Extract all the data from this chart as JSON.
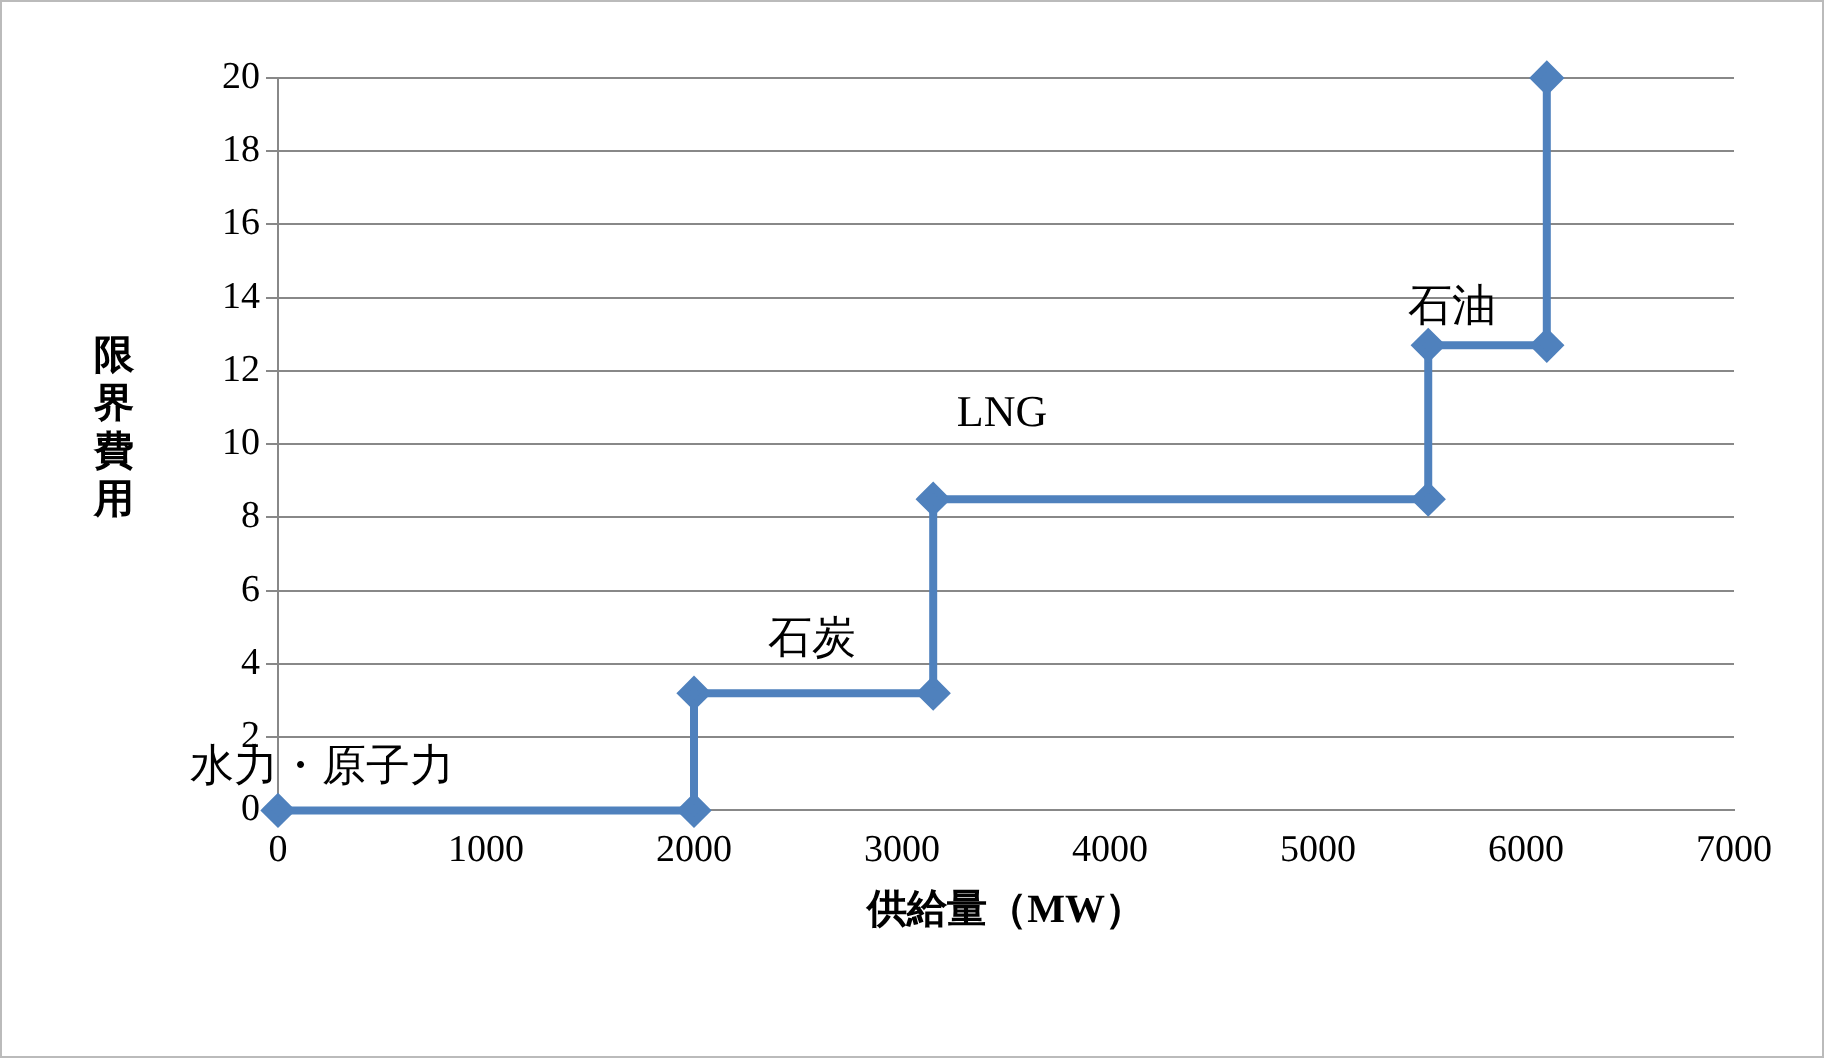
{
  "chart_data": {
    "type": "line",
    "xlabel": "供給量（MW）",
    "ylabel": "限界費用",
    "x": [
      0,
      2000,
      2000,
      3150,
      3150,
      5530,
      5530,
      6100,
      6100
    ],
    "series": [
      {
        "color": "#4f81bd",
        "values": [
          0,
          0,
          3.2,
          3.2,
          8.5,
          8.5,
          12.7,
          12.7,
          20
        ]
      }
    ],
    "xlim": [
      0,
      7000
    ],
    "xticks": [
      0,
      1000,
      2000,
      3000,
      4000,
      5000,
      6000,
      7000
    ],
    "ylim": [
      0,
      20
    ],
    "yticks": [
      0,
      2,
      4,
      6,
      8,
      10,
      12,
      14,
      16,
      18,
      20
    ],
    "grid": "y",
    "legend": false,
    "marker": "diamond",
    "line_style": "solid",
    "annotations": [
      "水力・原子力",
      "石炭",
      "LNG",
      "石油"
    ]
  }
}
